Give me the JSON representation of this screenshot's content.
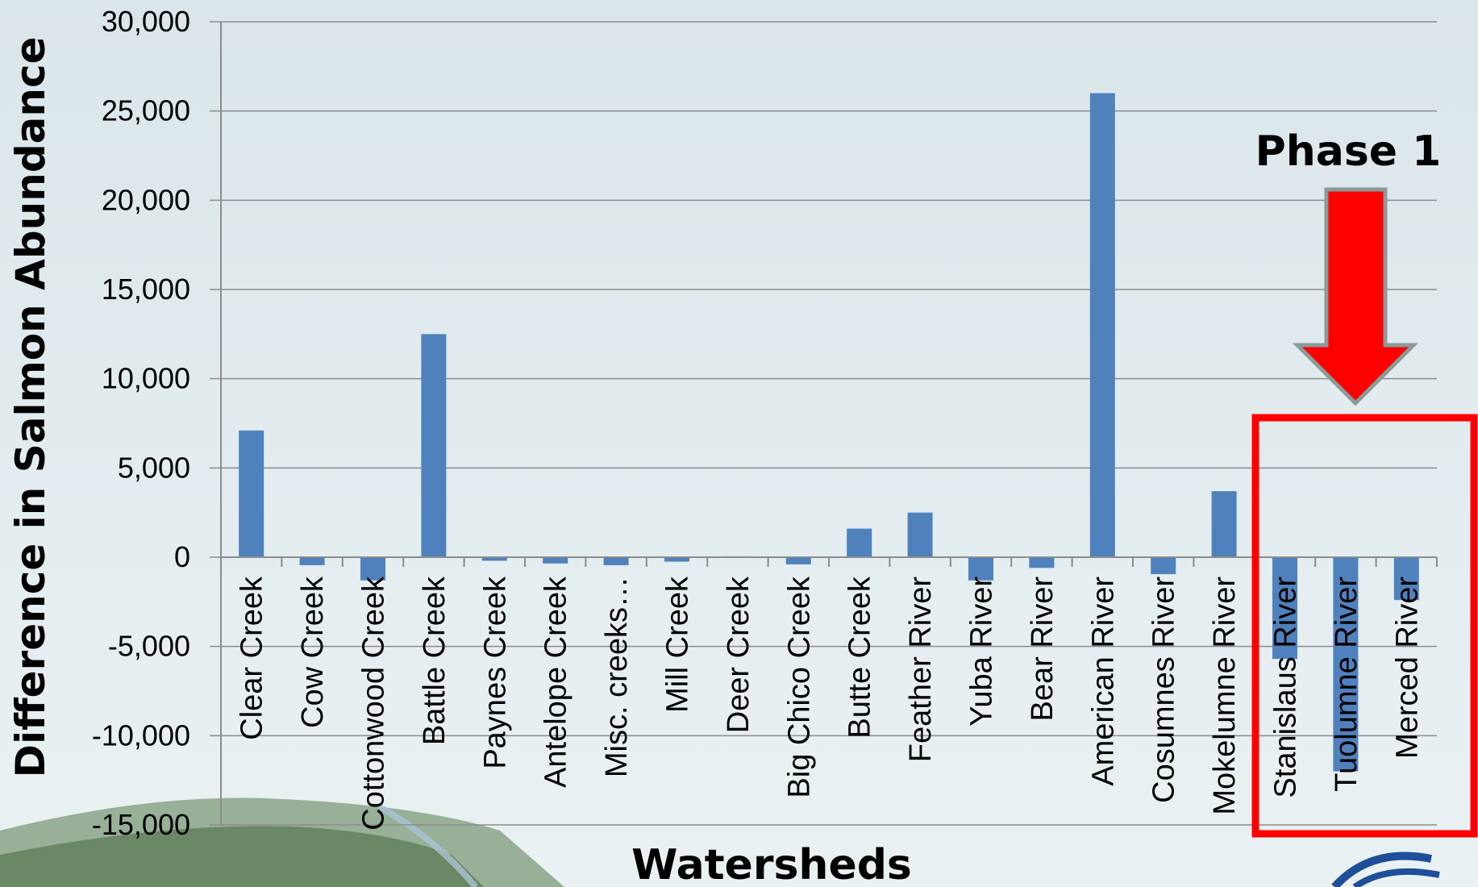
{
  "chart_data": {
    "type": "bar",
    "title": "",
    "xlabel": "Watersheds",
    "ylabel": "Difference in Salmon Abundance",
    "ylim": [
      -15000,
      30000
    ],
    "yticks": [
      30000,
      25000,
      20000,
      15000,
      10000,
      5000,
      0,
      -5000,
      -10000,
      -15000
    ],
    "ytick_labels": [
      "30,000",
      "25,000",
      "20,000",
      "15,000",
      "10,000",
      "5,000",
      "0",
      "-5,000",
      "-10,000",
      "-15,000"
    ],
    "grid": true,
    "categories": [
      "Clear Creek",
      "Cow Creek",
      "Cottonwood Creek",
      "Battle Creek",
      "Paynes Creek",
      "Antelope Creek",
      "Misc. creeks…",
      "Mill Creek",
      "Deer Creek",
      "Big Chico Creek",
      "Butte Creek",
      "Feather River",
      "Yuba River",
      "Bear River",
      "American River",
      "Cosumnes River",
      "Mokelumne River",
      "Stanislaus River",
      "Tuolumne River",
      "Merced River"
    ],
    "values": [
      7100,
      -450,
      -1300,
      12500,
      -200,
      -350,
      -450,
      -250,
      50,
      -400,
      1600,
      2500,
      -1300,
      -600,
      26000,
      -950,
      3700,
      -5700,
      -12000,
      -2400
    ],
    "bar_color": "#4f81bd",
    "annotation": {
      "text": "Phase 1",
      "highlight_categories": [
        "Stanislaus River",
        "Tuolumne River",
        "Merced River"
      ],
      "highlight_color": "#ff0000"
    }
  }
}
